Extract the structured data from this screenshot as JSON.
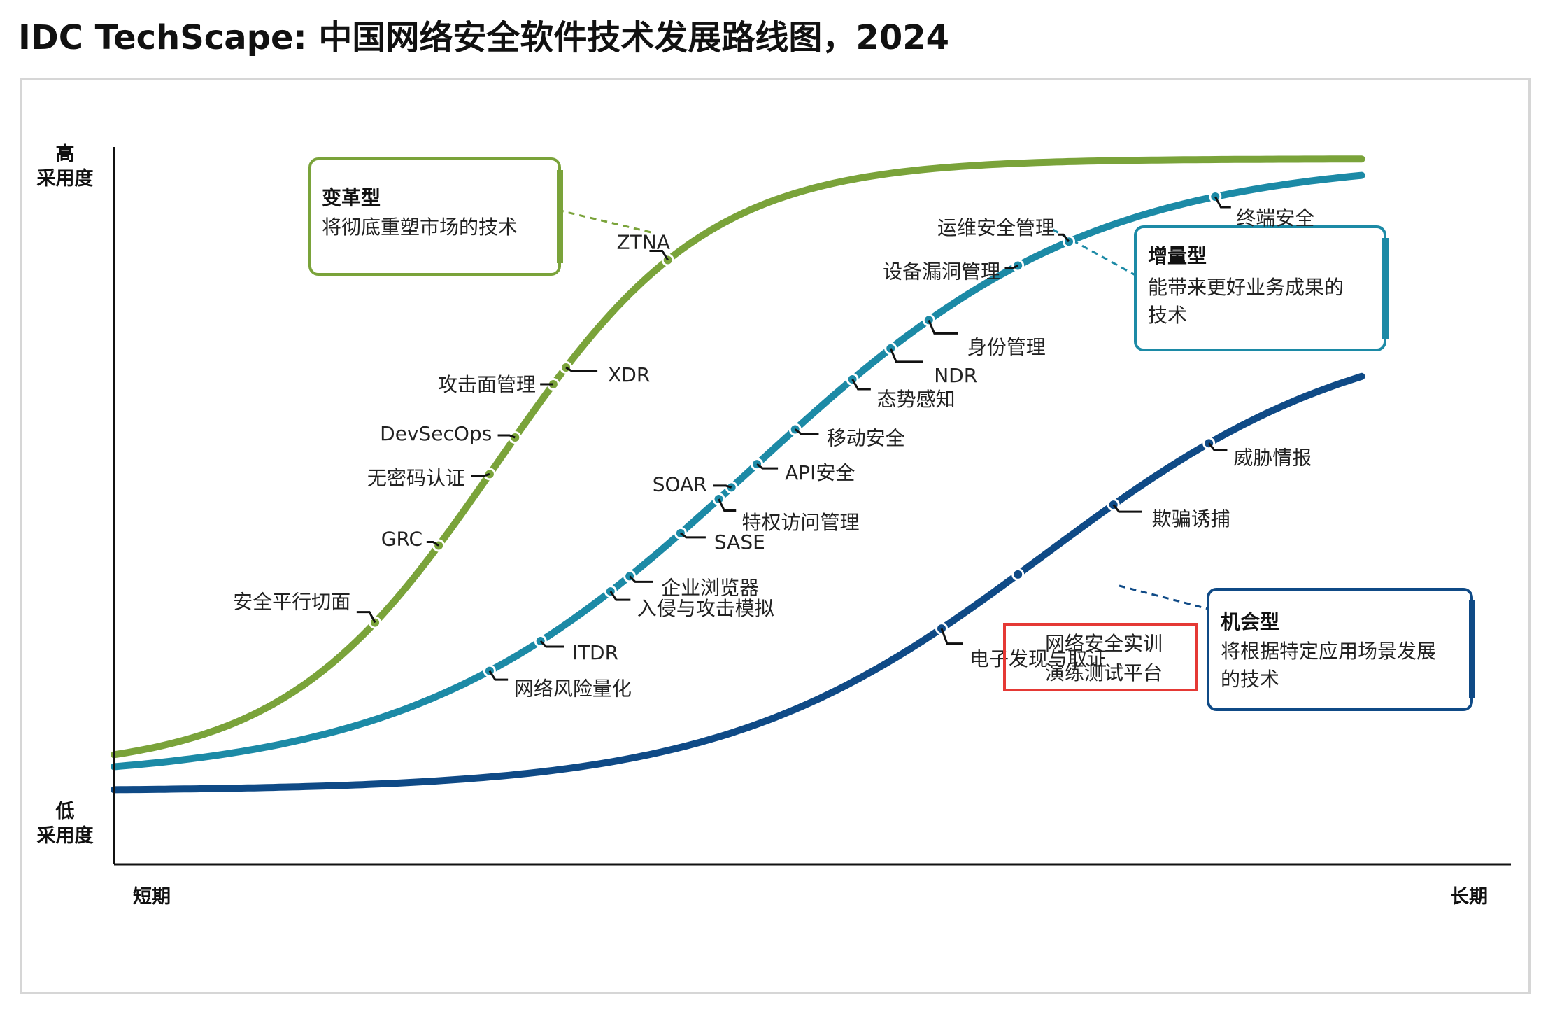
{
  "title": "IDC TechScape: 中国网络安全软件技术发展路线图，2024",
  "colors": {
    "transformational": "#7aa33a",
    "incremental": "#1c8aa6",
    "opportunistic": "#0f4a86",
    "highlight": "#e53935",
    "frame": "#d6d6d6"
  },
  "chart_data": {
    "type": "line",
    "title": "IDC TechScape: 中国网络安全软件技术发展路线图，2024",
    "y_axis": {
      "high_label_line1": "高",
      "high_label_line2": "采用度",
      "low_label_line1": "低",
      "low_label_line2": "采用度"
    },
    "x_axis": {
      "short_label": "短期",
      "long_label": "长期"
    },
    "x_range": [
      0,
      100
    ],
    "y_range": [
      0,
      100
    ],
    "series": [
      {
        "name": "变革型",
        "description": "将彻底重塑市场的技术",
        "color": "#7aa33a",
        "curve": {
          "start_y": 9,
          "end_y": 100,
          "midpoint_x": 30,
          "steepness": 0.12
        },
        "points": [
          {
            "label": "安全平行切面",
            "x": 20.5
          },
          {
            "label": "GRC",
            "x": 25.5
          },
          {
            "label": "无密码认证",
            "x": 29.5
          },
          {
            "label": "DevSecOps",
            "x": 31.5
          },
          {
            "label": "攻击面管理",
            "x": 34.5
          },
          {
            "label": "XDR",
            "x": 35.5
          },
          {
            "label": "ZTNA",
            "x": 43.5
          }
        ]
      },
      {
        "name": "增量型",
        "description": "能带来更好业务成果的技术",
        "color": "#1c8aa6",
        "curve": {
          "start_y": 7.5,
          "end_y": 100,
          "midpoint_x": 50,
          "steepness": 0.075
        },
        "points": [
          {
            "label": "网络风险量化",
            "x": 29.5
          },
          {
            "label": "ITDR",
            "x": 33.5
          },
          {
            "label": "入侵与攻击模拟",
            "x": 39
          },
          {
            "label": "企业浏览器",
            "x": 40.5
          },
          {
            "label": "SASE",
            "x": 44.5
          },
          {
            "label": "特权访问管理",
            "x": 47.5
          },
          {
            "label": "SOAR",
            "x": 48.5
          },
          {
            "label": "API安全",
            "x": 50.5
          },
          {
            "label": "移动安全",
            "x": 53.5
          },
          {
            "label": "态势感知",
            "x": 58
          },
          {
            "label": "NDR",
            "x": 61
          },
          {
            "label": "身份管理",
            "x": 64
          },
          {
            "label": "设备漏洞管理",
            "x": 71
          },
          {
            "label": "运维安全管理",
            "x": 75
          },
          {
            "label": "终端安全",
            "x": 86.5
          }
        ]
      },
      {
        "name": "机会型",
        "description": "将根据特定应用场景发展的技术",
        "color": "#0f4a86",
        "curve": {
          "start_y": 6,
          "end_y": 76,
          "midpoint_x": 73,
          "steepness": 0.08
        },
        "points": [
          {
            "label": "电子发现与取证",
            "x": 65
          },
          {
            "label": "网络安全实训演练测试平台",
            "x": 71,
            "highlighted": true
          },
          {
            "label": "欺骗诱捕",
            "x": 78.5
          },
          {
            "label": "威胁情报",
            "x": 86
          }
        ]
      }
    ]
  },
  "callouts": {
    "transformational": {
      "title": "变革型",
      "text": "将彻底重塑市场的技术"
    },
    "incremental": {
      "title": "增量型",
      "line1": "能带来更好业务成果的",
      "line2": "技术"
    },
    "opportunistic": {
      "title": "机会型",
      "line1": "将根据特定应用场景发展",
      "line2": "的技术"
    },
    "highlight_line1": "网络安全实训",
    "highlight_line2": "演练测试平台"
  }
}
